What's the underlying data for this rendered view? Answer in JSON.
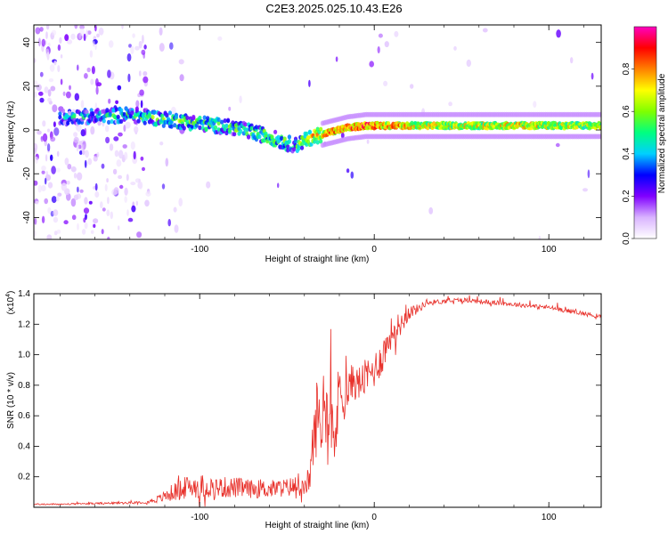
{
  "title": "C2E3.2025.025.10.43.E26",
  "chart_data": [
    {
      "type": "heatmap",
      "xlabel": "Height of straight line (km)",
      "ylabel": "Frequency (Hz)",
      "xlim": [
        -195,
        130
      ],
      "ylim": [
        -50,
        48
      ],
      "x_ticks": [
        -100,
        0,
        100
      ],
      "x_tick_labels": [
        "-100",
        "0",
        "100"
      ],
      "y_ticks": [
        -40,
        -20,
        0,
        20,
        40
      ],
      "y_tick_labels": [
        "-40",
        "-20",
        "0",
        "20",
        "40"
      ],
      "colorbar": {
        "label": "Normalized spectral amplitude",
        "range": [
          0,
          1
        ],
        "ticks": [
          0.0,
          0.2,
          0.4,
          0.6,
          0.8
        ],
        "tick_labels": [
          "0.0",
          "0.2",
          "0.4",
          "0.6",
          "0.8"
        ],
        "colors": [
          "#ffffff",
          "#d9b3ff",
          "#8000ff",
          "#0000ff",
          "#00d0ff",
          "#00ff80",
          "#80ff00",
          "#ffff00",
          "#ff8000",
          "#ff0000",
          "#ff00c0"
        ]
      },
      "ridge": {
        "x": [
          -180,
          -160,
          -140,
          -120,
          -100,
          -80,
          -60,
          -50,
          -45,
          -40,
          -35,
          -25,
          -15,
          -5,
          0,
          10,
          20,
          40,
          80,
          130
        ],
        "y": [
          6,
          6,
          7,
          5,
          3,
          1,
          -3,
          -6,
          -7,
          -5,
          -3,
          -1,
          1,
          2,
          2,
          2,
          2,
          2,
          2,
          2
        ],
        "amplitude": [
          0.35,
          0.4,
          0.45,
          0.5,
          0.5,
          0.5,
          0.55,
          0.5,
          0.45,
          0.6,
          0.7,
          0.75,
          0.8,
          0.85,
          0.8,
          0.75,
          0.7,
          0.65,
          0.7,
          0.6
        ]
      }
    },
    {
      "type": "line",
      "xlabel": "Height of straight line (km)",
      "ylabel": "SNR (10 * v/v)",
      "y_multiplier_label": "(x10",
      "y_multiplier_exp": "4",
      "y_multiplier_close": ")",
      "xlim": [
        -195,
        130
      ],
      "ylim": [
        0,
        1.4
      ],
      "x_ticks": [
        -100,
        0,
        100
      ],
      "x_tick_labels": [
        "-100",
        "0",
        "100"
      ],
      "y_ticks": [
        0.2,
        0.4,
        0.6,
        0.8,
        1.0,
        1.2,
        1.4
      ],
      "y_tick_labels": [
        "0.2",
        "0.4",
        "0.6",
        "0.8",
        "1.0",
        "1.2",
        "1.4"
      ],
      "color": "#e8302a",
      "series": [
        {
          "name": "SNR",
          "x": [
            -195,
            -180,
            -160,
            -140,
            -130,
            -122,
            -115,
            -110,
            -105,
            -100,
            -90,
            -80,
            -70,
            -60,
            -50,
            -45,
            -40,
            -37,
            -35,
            -33,
            -30,
            -27,
            -25,
            -22,
            -20,
            -17,
            -15,
            -12,
            -10,
            -5,
            0,
            5,
            10,
            15,
            20,
            25,
            30,
            40,
            50,
            60,
            70,
            80,
            90,
            100,
            110,
            120,
            130
          ],
          "y": [
            0.02,
            0.02,
            0.025,
            0.03,
            0.035,
            0.06,
            0.1,
            0.12,
            0.14,
            0.14,
            0.13,
            0.13,
            0.12,
            0.12,
            0.13,
            0.14,
            0.12,
            0.2,
            0.4,
            0.6,
            0.55,
            0.7,
            0.65,
            0.45,
            0.8,
            0.72,
            0.75,
            0.85,
            0.8,
            0.85,
            0.9,
            1.0,
            1.15,
            1.2,
            1.28,
            1.3,
            1.34,
            1.35,
            1.36,
            1.35,
            1.34,
            1.33,
            1.32,
            1.31,
            1.29,
            1.27,
            1.25
          ],
          "noise": [
            0.005,
            0.005,
            0.006,
            0.007,
            0.01,
            0.03,
            0.06,
            0.07,
            0.08,
            0.08,
            0.07,
            0.07,
            0.06,
            0.06,
            0.06,
            0.07,
            0.05,
            0.1,
            0.2,
            0.25,
            0.25,
            0.25,
            0.25,
            0.2,
            0.25,
            0.15,
            0.12,
            0.12,
            0.12,
            0.12,
            0.12,
            0.12,
            0.1,
            0.08,
            0.05,
            0.03,
            0.02,
            0.015,
            0.015,
            0.015,
            0.015,
            0.015,
            0.015,
            0.015,
            0.015,
            0.015,
            0.015
          ]
        }
      ]
    }
  ]
}
